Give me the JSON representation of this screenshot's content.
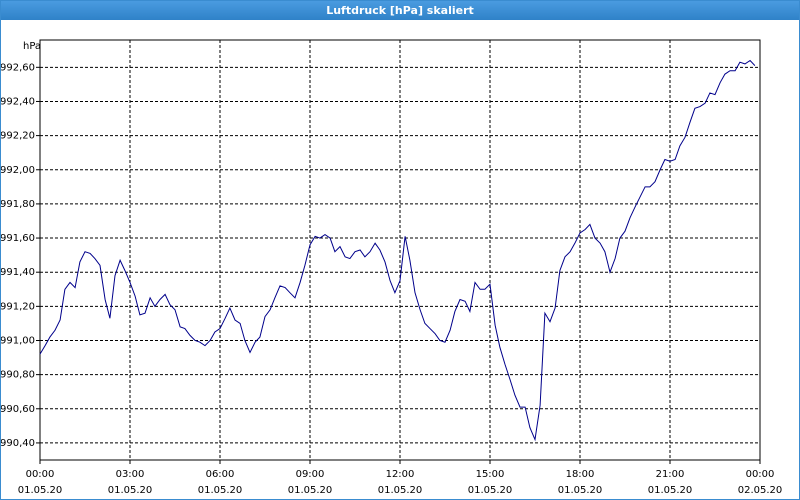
{
  "chart_data": {
    "type": "line",
    "title": "Luftdruck [hPa] skaliert",
    "y_unit": "hPa",
    "color": "#00008b",
    "grid": true,
    "xlim": [
      0,
      24
    ],
    "ylim": [
      990.3,
      992.76
    ],
    "xticks": [
      {
        "value": 0,
        "label": "00:00"
      },
      {
        "value": 3,
        "label": "03:00"
      },
      {
        "value": 6,
        "label": "06:00"
      },
      {
        "value": 9,
        "label": "09:00"
      },
      {
        "value": 12,
        "label": "12:00"
      },
      {
        "value": 15,
        "label": "15:00"
      },
      {
        "value": 18,
        "label": "18:00"
      },
      {
        "value": 21,
        "label": "21:00"
      },
      {
        "value": 24,
        "label": "00:00"
      }
    ],
    "xtick_dates": [
      "01.05.20",
      "01.05.20",
      "01.05.20",
      "01.05.20",
      "01.05.20",
      "01.05.20",
      "01.05.20",
      "01.05.20",
      "02.05.20"
    ],
    "yticks": [
      {
        "value": 990.4,
        "label": "990,40"
      },
      {
        "value": 990.6,
        "label": "990,60"
      },
      {
        "value": 990.8,
        "label": "990,80"
      },
      {
        "value": 991.0,
        "label": "991,00"
      },
      {
        "value": 991.2,
        "label": "991,20"
      },
      {
        "value": 991.4,
        "label": "991,40"
      },
      {
        "value": 991.6,
        "label": "991,60"
      },
      {
        "value": 991.8,
        "label": "991,80"
      },
      {
        "value": 992.0,
        "label": "992,00"
      },
      {
        "value": 992.2,
        "label": "992,20"
      },
      {
        "value": 992.4,
        "label": "992,40"
      },
      {
        "value": 992.6,
        "label": "992,60"
      }
    ],
    "x": [
      0,
      0.17,
      0.33,
      0.5,
      0.67,
      0.83,
      1,
      1.17,
      1.33,
      1.5,
      1.67,
      1.83,
      2,
      2.17,
      2.33,
      2.5,
      2.67,
      2.83,
      3,
      3.17,
      3.33,
      3.5,
      3.67,
      3.83,
      4,
      4.17,
      4.33,
      4.5,
      4.67,
      4.83,
      5,
      5.17,
      5.33,
      5.5,
      5.67,
      5.83,
      6,
      6.17,
      6.33,
      6.5,
      6.67,
      6.83,
      7,
      7.17,
      7.33,
      7.5,
      7.67,
      7.83,
      8,
      8.17,
      8.33,
      8.5,
      8.67,
      8.83,
      9,
      9.17,
      9.33,
      9.5,
      9.67,
      9.83,
      10,
      10.17,
      10.33,
      10.5,
      10.67,
      10.83,
      11,
      11.17,
      11.33,
      11.5,
      11.67,
      11.83,
      12,
      12.17,
      12.33,
      12.5,
      12.67,
      12.83,
      13,
      13.17,
      13.33,
      13.5,
      13.67,
      13.83,
      14,
      14.17,
      14.33,
      14.5,
      14.67,
      14.83,
      15,
      15.17,
      15.33,
      15.5,
      15.67,
      15.83,
      16,
      16.17,
      16.33,
      16.5,
      16.67,
      16.83,
      17,
      17.17,
      17.33,
      17.5,
      17.67,
      17.83,
      18,
      18.17,
      18.33,
      18.5,
      18.67,
      18.83,
      19,
      19.17,
      19.33,
      19.5,
      19.67,
      19.83,
      20,
      20.17,
      20.33,
      20.5,
      20.67,
      20.83,
      21,
      21.17,
      21.33,
      21.5,
      21.67,
      21.83,
      22,
      22.17,
      22.33,
      22.5,
      22.67,
      22.83,
      23,
      23.17,
      23.33,
      23.5,
      23.67,
      23.83
    ],
    "values": [
      990.92,
      990.97,
      991.02,
      991.06,
      991.12,
      991.3,
      991.34,
      991.31,
      991.46,
      991.52,
      991.51,
      991.48,
      991.44,
      991.24,
      991.13,
      991.38,
      991.47,
      991.41,
      991.34,
      991.26,
      991.15,
      991.16,
      991.25,
      991.2,
      991.24,
      991.27,
      991.21,
      991.18,
      991.08,
      991.07,
      991.03,
      991.0,
      990.99,
      990.97,
      991.0,
      991.05,
      991.07,
      991.13,
      991.19,
      991.12,
      991.1,
      991.0,
      990.93,
      990.99,
      991.02,
      991.14,
      991.18,
      991.25,
      991.32,
      991.31,
      991.28,
      991.25,
      991.34,
      991.44,
      991.56,
      991.61,
      991.6,
      991.62,
      991.6,
      991.52,
      991.55,
      991.49,
      991.48,
      991.52,
      991.53,
      991.49,
      991.52,
      991.57,
      991.53,
      991.46,
      991.35,
      991.28,
      991.35,
      991.61,
      991.47,
      991.28,
      991.18,
      991.1,
      991.07,
      991.04,
      991.0,
      990.99,
      991.06,
      991.17,
      991.24,
      991.23,
      991.17,
      991.34,
      991.3,
      991.3,
      991.33,
      991.09,
      990.96,
      990.86,
      990.77,
      990.68,
      990.61,
      990.61,
      990.49,
      990.42,
      990.62,
      991.16,
      991.11,
      991.19,
      991.41,
      991.49,
      991.52,
      991.57,
      991.63,
      991.65,
      991.68,
      991.6,
      991.57,
      991.52,
      991.4,
      991.48,
      991.6,
      991.64,
      991.72,
      991.78,
      991.84,
      991.9,
      991.9,
      991.93,
      992.0,
      992.06,
      992.05,
      992.06,
      992.14,
      992.19,
      992.28,
      992.36,
      992.37,
      992.39,
      992.45,
      992.44,
      992.51,
      992.56,
      992.58,
      992.58,
      992.63,
      992.62,
      992.64,
      992.61
    ]
  }
}
